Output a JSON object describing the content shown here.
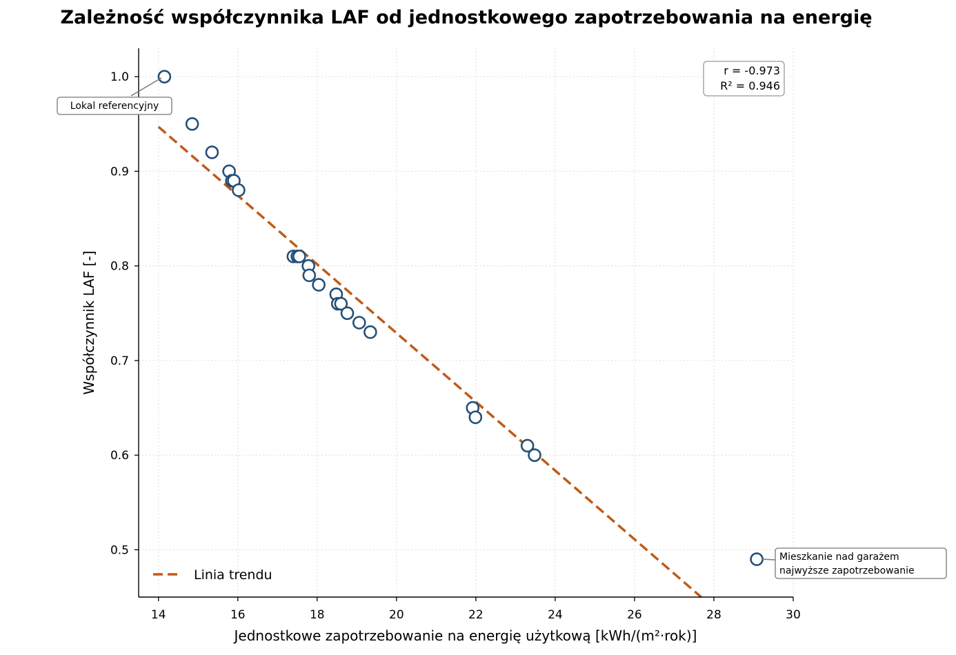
{
  "chart_data": {
    "type": "scatter",
    "title": "Zależność współczynnika LAF od jednostkowego zapotrzebowania na energię",
    "xlabel": "Jednostkowe zapotrzebowanie na energię użytkową [kWh/(m²·rok)]",
    "ylabel": "Współczynnik LAF [-]",
    "xlim": [
      13.5,
      30
    ],
    "ylim": [
      0.45,
      1.03
    ],
    "x_ticks": [
      14,
      16,
      18,
      20,
      22,
      24,
      26,
      28,
      30
    ],
    "y_ticks": [
      0.5,
      0.6,
      0.7,
      0.8,
      0.9,
      1.0
    ],
    "x_tick_labels": [
      "14",
      "16",
      "18",
      "20",
      "22",
      "24",
      "26",
      "28",
      "30"
    ],
    "y_tick_labels": [
      "0.5",
      "0.6",
      "0.7",
      "0.8",
      "0.9",
      "1.0"
    ],
    "grid": true,
    "points": [
      {
        "x": 14.15,
        "y": 1.0
      },
      {
        "x": 14.85,
        "y": 0.95
      },
      {
        "x": 15.35,
        "y": 0.92
      },
      {
        "x": 15.78,
        "y": 0.9
      },
      {
        "x": 15.85,
        "y": 0.89
      },
      {
        "x": 15.9,
        "y": 0.89
      },
      {
        "x": 16.02,
        "y": 0.88
      },
      {
        "x": 17.4,
        "y": 0.81
      },
      {
        "x": 17.5,
        "y": 0.81
      },
      {
        "x": 17.55,
        "y": 0.81
      },
      {
        "x": 17.78,
        "y": 0.8
      },
      {
        "x": 17.8,
        "y": 0.79
      },
      {
        "x": 18.04,
        "y": 0.78
      },
      {
        "x": 18.48,
        "y": 0.77
      },
      {
        "x": 18.52,
        "y": 0.76
      },
      {
        "x": 18.6,
        "y": 0.76
      },
      {
        "x": 18.76,
        "y": 0.75
      },
      {
        "x": 19.06,
        "y": 0.74
      },
      {
        "x": 19.34,
        "y": 0.73
      },
      {
        "x": 21.92,
        "y": 0.65
      },
      {
        "x": 21.99,
        "y": 0.64
      },
      {
        "x": 23.3,
        "y": 0.61
      },
      {
        "x": 23.48,
        "y": 0.6
      },
      {
        "x": 29.08,
        "y": 0.49
      }
    ],
    "trend": {
      "name": "Linia trendu",
      "x": [
        14.0,
        27.68
      ],
      "y": [
        0.947,
        0.45
      ]
    },
    "legend": {
      "placement": "lower-left",
      "entries": [
        "Linia trendu"
      ]
    },
    "stats": {
      "r": "r = -0.973",
      "r2": "R² = 0.946"
    },
    "annotations": [
      {
        "text": "Lokal referencyjny",
        "x": 14.15,
        "y": 1.0
      },
      {
        "text": "Mieszkanie nad garażem\nnajwyższe zapotrzebowanie",
        "x": 29.08,
        "y": 0.49
      }
    ]
  },
  "colors": {
    "marker_edge": "#244f78",
    "marker_fill": "#ffffff",
    "trend": "#c05a18",
    "grid": "#dddddd",
    "annotation_border": "#777777"
  }
}
